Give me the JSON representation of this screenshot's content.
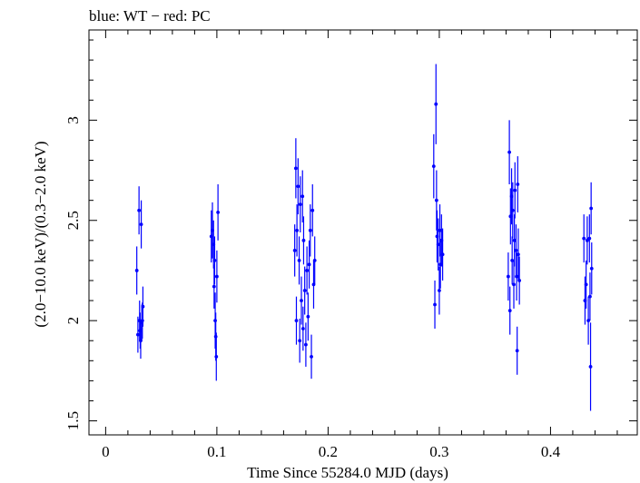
{
  "chart_data": {
    "type": "scatter",
    "title": "blue: WT − red: PC",
    "xlabel": "Time Since 55284.0 MJD (days)",
    "ylabel": "(2.0−10.0 keV)/(0.3−2.0 keV)",
    "xlim": [
      -0.015,
      0.478
    ],
    "ylim": [
      1.43,
      3.45
    ],
    "xticks": [
      0,
      0.1,
      0.2,
      0.3,
      0.4
    ],
    "xtick_labels": [
      "0",
      "0.1",
      "0.2",
      "0.3",
      "0.4"
    ],
    "yticks": [
      1.5,
      2,
      2.5,
      3
    ],
    "ytick_labels": [
      "1.5",
      "2",
      "2.5",
      "3"
    ],
    "grid": false,
    "colors": {
      "WT": "#0000ff",
      "PC": "#ff0000"
    },
    "series": [
      {
        "name": "WT",
        "color": "#0000ff",
        "points": [
          {
            "x": 0.028,
            "y": 2.25,
            "err": 0.12
          },
          {
            "x": 0.029,
            "y": 1.93,
            "err": 0.09
          },
          {
            "x": 0.03,
            "y": 2.55,
            "err": 0.12
          },
          {
            "x": 0.0305,
            "y": 2.0,
            "err": 0.1
          },
          {
            "x": 0.031,
            "y": 1.95,
            "err": 0.09
          },
          {
            "x": 0.0315,
            "y": 1.9,
            "err": 0.09
          },
          {
            "x": 0.032,
            "y": 2.48,
            "err": 0.12
          },
          {
            "x": 0.0325,
            "y": 1.99,
            "err": 0.09
          },
          {
            "x": 0.033,
            "y": 2.0,
            "err": 0.09
          },
          {
            "x": 0.0335,
            "y": 2.07,
            "err": 0.1
          },
          {
            "x": 0.095,
            "y": 2.42,
            "err": 0.13
          },
          {
            "x": 0.096,
            "y": 2.45,
            "err": 0.14
          },
          {
            "x": 0.097,
            "y": 2.38,
            "err": 0.12
          },
          {
            "x": 0.0975,
            "y": 2.17,
            "err": 0.11
          },
          {
            "x": 0.098,
            "y": 2.3,
            "err": 0.12
          },
          {
            "x": 0.0985,
            "y": 2.0,
            "err": 0.14
          },
          {
            "x": 0.099,
            "y": 1.92,
            "err": 0.12
          },
          {
            "x": 0.0995,
            "y": 1.82,
            "err": 0.12
          },
          {
            "x": 0.1,
            "y": 2.22,
            "err": 0.13
          },
          {
            "x": 0.101,
            "y": 2.54,
            "err": 0.14
          },
          {
            "x": 0.17,
            "y": 2.35,
            "err": 0.13
          },
          {
            "x": 0.171,
            "y": 2.76,
            "err": 0.15
          },
          {
            "x": 0.1715,
            "y": 2.0,
            "err": 0.12
          },
          {
            "x": 0.172,
            "y": 2.45,
            "err": 0.13
          },
          {
            "x": 0.173,
            "y": 2.67,
            "err": 0.14
          },
          {
            "x": 0.174,
            "y": 2.3,
            "err": 0.12
          },
          {
            "x": 0.1745,
            "y": 1.9,
            "err": 0.11
          },
          {
            "x": 0.175,
            "y": 2.58,
            "err": 0.14
          },
          {
            "x": 0.176,
            "y": 2.1,
            "err": 0.12
          },
          {
            "x": 0.177,
            "y": 2.62,
            "err": 0.13
          },
          {
            "x": 0.1775,
            "y": 1.96,
            "err": 0.11
          },
          {
            "x": 0.178,
            "y": 2.4,
            "err": 0.12
          },
          {
            "x": 0.179,
            "y": 2.15,
            "err": 0.12
          },
          {
            "x": 0.18,
            "y": 1.88,
            "err": 0.11
          },
          {
            "x": 0.181,
            "y": 2.25,
            "err": 0.12
          },
          {
            "x": 0.182,
            "y": 2.02,
            "err": 0.12
          },
          {
            "x": 0.183,
            "y": 2.28,
            "err": 0.12
          },
          {
            "x": 0.184,
            "y": 2.45,
            "err": 0.13
          },
          {
            "x": 0.185,
            "y": 1.82,
            "err": 0.11
          },
          {
            "x": 0.186,
            "y": 2.55,
            "err": 0.13
          },
          {
            "x": 0.187,
            "y": 2.18,
            "err": 0.12
          },
          {
            "x": 0.188,
            "y": 2.3,
            "err": 0.12
          },
          {
            "x": 0.295,
            "y": 2.77,
            "err": 0.16
          },
          {
            "x": 0.296,
            "y": 2.08,
            "err": 0.12
          },
          {
            "x": 0.297,
            "y": 3.08,
            "err": 0.2
          },
          {
            "x": 0.2975,
            "y": 2.6,
            "err": 0.15
          },
          {
            "x": 0.298,
            "y": 2.42,
            "err": 0.13
          },
          {
            "x": 0.299,
            "y": 2.38,
            "err": 0.13
          },
          {
            "x": 0.3,
            "y": 2.15,
            "err": 0.12
          },
          {
            "x": 0.3005,
            "y": 2.45,
            "err": 0.13
          },
          {
            "x": 0.301,
            "y": 2.28,
            "err": 0.12
          },
          {
            "x": 0.302,
            "y": 2.4,
            "err": 0.13
          },
          {
            "x": 0.303,
            "y": 2.33,
            "err": 0.13
          },
          {
            "x": 0.362,
            "y": 2.22,
            "err": 0.12
          },
          {
            "x": 0.363,
            "y": 2.84,
            "err": 0.16
          },
          {
            "x": 0.3635,
            "y": 2.05,
            "err": 0.12
          },
          {
            "x": 0.364,
            "y": 2.52,
            "err": 0.14
          },
          {
            "x": 0.365,
            "y": 2.62,
            "err": 0.14
          },
          {
            "x": 0.3655,
            "y": 2.3,
            "err": 0.12
          },
          {
            "x": 0.366,
            "y": 2.55,
            "err": 0.14
          },
          {
            "x": 0.367,
            "y": 2.18,
            "err": 0.12
          },
          {
            "x": 0.3675,
            "y": 2.4,
            "err": 0.13
          },
          {
            "x": 0.368,
            "y": 2.65,
            "err": 0.14
          },
          {
            "x": 0.369,
            "y": 2.35,
            "err": 0.13
          },
          {
            "x": 0.3695,
            "y": 2.22,
            "err": 0.12
          },
          {
            "x": 0.37,
            "y": 1.85,
            "err": 0.12
          },
          {
            "x": 0.3705,
            "y": 2.68,
            "err": 0.14
          },
          {
            "x": 0.371,
            "y": 2.33,
            "err": 0.13
          },
          {
            "x": 0.372,
            "y": 2.2,
            "err": 0.12
          },
          {
            "x": 0.43,
            "y": 2.41,
            "err": 0.12
          },
          {
            "x": 0.431,
            "y": 2.1,
            "err": 0.12
          },
          {
            "x": 0.432,
            "y": 2.18,
            "err": 0.12
          },
          {
            "x": 0.433,
            "y": 2.4,
            "err": 0.12
          },
          {
            "x": 0.434,
            "y": 2.0,
            "err": 0.12
          },
          {
            "x": 0.435,
            "y": 2.41,
            "err": 0.12
          },
          {
            "x": 0.4355,
            "y": 2.12,
            "err": 0.12
          },
          {
            "x": 0.436,
            "y": 1.77,
            "err": 0.22
          },
          {
            "x": 0.4365,
            "y": 2.56,
            "err": 0.13
          },
          {
            "x": 0.437,
            "y": 2.26,
            "err": 0.13
          }
        ]
      }
    ]
  }
}
